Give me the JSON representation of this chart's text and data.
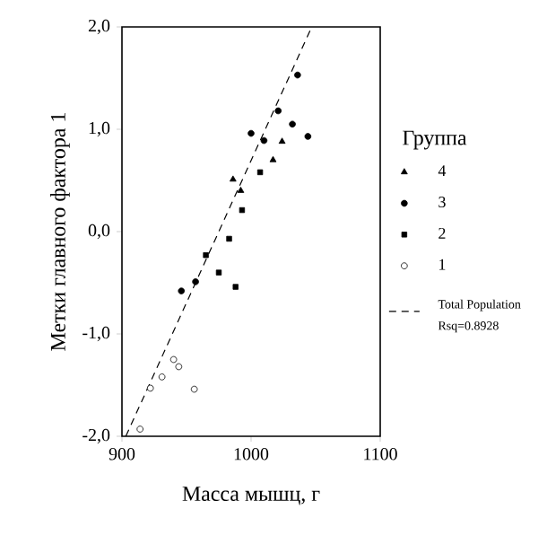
{
  "chart_data": {
    "type": "scatter",
    "xlabel": "Масса мышц, г",
    "ylabel": "Метки главного фактора 1",
    "legend_title": "Группа",
    "legend": "right",
    "xlim": [
      900,
      1100
    ],
    "xticks": [
      900,
      1000,
      1100
    ],
    "ylim": [
      -2.0,
      2.0
    ],
    "yticks": [
      {
        "value": -2.0,
        "label": "-2,0"
      },
      {
        "value": -1.0,
        "label": "-1,0"
      },
      {
        "value": 0.0,
        "label": "0,0"
      },
      {
        "value": 1.0,
        "label": "1,0"
      },
      {
        "value": 2.0,
        "label": "2,0"
      }
    ],
    "grid": false,
    "annotations": [
      "Rsq=0.8928"
    ],
    "series": [
      {
        "name": "4",
        "marker": "triangle",
        "color": "#000000",
        "x": [
          986,
          992,
          1017,
          1024
        ],
        "values": [
          0.51,
          0.4,
          0.7,
          0.88
        ]
      },
      {
        "name": "3",
        "marker": "circle",
        "color": "#000000",
        "x": [
          946,
          957,
          1000,
          1010,
          1021,
          1032,
          1036,
          1044
        ],
        "values": [
          -0.58,
          -0.49,
          0.96,
          0.89,
          1.18,
          1.05,
          1.53,
          0.93
        ]
      },
      {
        "name": "2",
        "marker": "square",
        "color": "#000000",
        "x": [
          965,
          975,
          983,
          988,
          993,
          1007
        ],
        "values": [
          -0.23,
          -0.4,
          -0.07,
          -0.54,
          0.21,
          0.58
        ]
      },
      {
        "name": "1",
        "marker": "circle",
        "color": "#ffffff",
        "x": [
          914,
          922,
          931,
          940,
          944,
          956
        ],
        "values": [
          -1.93,
          -1.53,
          -1.42,
          -1.25,
          -1.32,
          -1.54
        ]
      },
      {
        "name": "Total Population",
        "type": "line",
        "line_style": "dashed",
        "marker": "none",
        "color": "#000000",
        "x": [
          903,
          1047
        ],
        "values": [
          -2.0,
          2.0
        ]
      }
    ]
  }
}
